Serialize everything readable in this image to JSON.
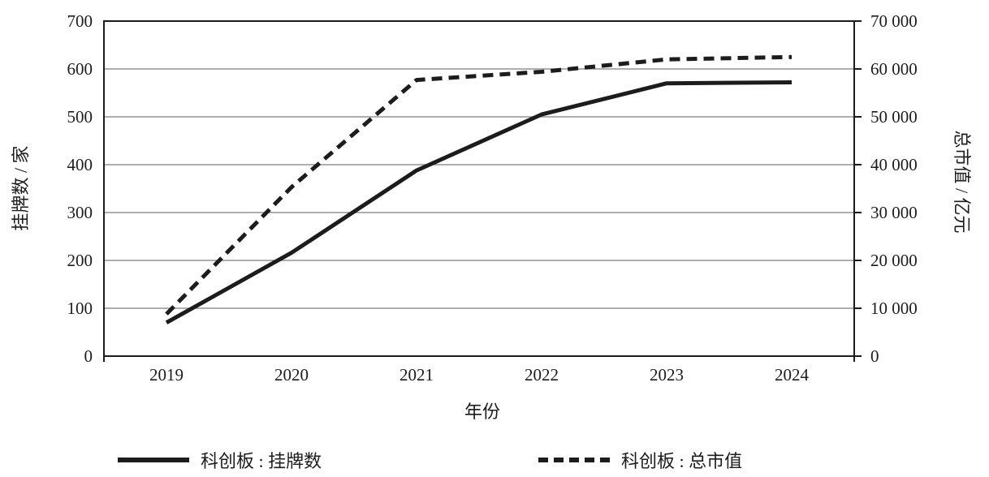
{
  "chart_data": {
    "type": "line",
    "title": "",
    "categories": [
      "2019",
      "2020",
      "2021",
      "2022",
      "2023",
      "2024"
    ],
    "xlabel": "年份",
    "left_axis": {
      "label": "挂牌数 / 家",
      "min": 0,
      "max": 700,
      "step": 100,
      "tick_labels": [
        "0",
        "100",
        "200",
        "300",
        "400",
        "500",
        "600",
        "700"
      ]
    },
    "right_axis": {
      "label": "总市值 / 亿元",
      "min": 0,
      "max": 70000,
      "step": 10000,
      "tick_labels": [
        "0",
        "10 000",
        "20 000",
        "30 000",
        "40 000",
        "50 000",
        "60 000",
        "70 000"
      ]
    },
    "series": [
      {
        "name": "科创板 : 挂牌数",
        "axis": "left",
        "line_style": "solid",
        "color": "#1c1c1c",
        "values": [
          70,
          216,
          388,
          505,
          570,
          572
        ]
      },
      {
        "name": "科创板 : 总市值",
        "axis": "right",
        "line_style": "dashed",
        "color": "#1c1c1c",
        "values": [
          8800,
          35300,
          57700,
          59400,
          62000,
          62500
        ]
      }
    ],
    "grid": true,
    "legend_position": "bottom",
    "colors": {
      "line": "#1c1c1c",
      "gridline": "#7d7d7d",
      "axis": "#1c1c1c",
      "background": "#ffffff"
    }
  }
}
